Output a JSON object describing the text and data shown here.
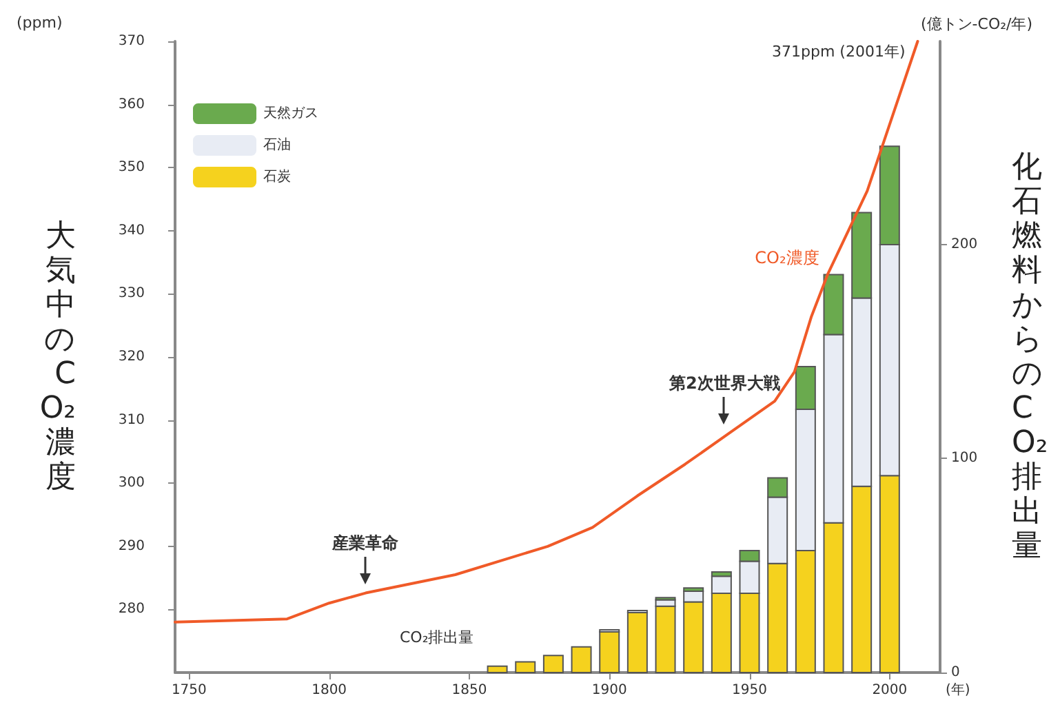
{
  "chart_data": {
    "type": "bar",
    "stacked": true,
    "ylabel": "大気中のCO₂濃度",
    "y2label": "化石燃料からのCO₂排出量",
    "xlabel": "(年)",
    "xlim": [
      1745,
      2018
    ],
    "xticks": [
      1750,
      1800,
      1850,
      1900,
      1950,
      2000
    ],
    "ylim": [
      270,
      370
    ],
    "yticks": [
      280,
      290,
      300,
      310,
      320,
      330,
      340,
      350,
      360,
      370
    ],
    "y2lim": [
      0,
      295
    ],
    "y2ticks": [
      0,
      100,
      200
    ],
    "x": [
      1860,
      1870,
      1880,
      1890,
      1900,
      1910,
      1920,
      1930,
      1940,
      1950,
      1960,
      1970,
      1980,
      1990,
      2000
    ],
    "series": [
      {
        "name": "石炭",
        "color": "#f5d21e",
        "axis": "y2",
        "values": [
          3,
          5,
          8,
          12,
          19,
          28,
          31,
          33,
          37,
          37,
          51,
          57,
          70,
          87,
          92
        ]
      },
      {
        "name": "石油",
        "color": "#e8ecf4",
        "axis": "y2",
        "values": [
          0,
          0,
          0,
          null,
          1,
          1,
          3,
          5,
          8,
          15,
          31,
          66,
          88,
          88,
          108
        ]
      },
      {
        "name": "天然ガス",
        "color": "#6aaa4e",
        "axis": "y2",
        "values": [
          0,
          0,
          0,
          0,
          0,
          0,
          1,
          1.5,
          2,
          5,
          9,
          20,
          28,
          40,
          46
        ]
      },
      {
        "name": "CO₂濃度",
        "type": "line",
        "color": "#f05a28",
        "axis": "y",
        "x": [
          1745,
          1785,
          1800,
          1813,
          1845,
          1878,
          1894,
          1910,
          1927,
          1943,
          1959,
          1966,
          1972,
          1978,
          1992,
          2010
        ],
        "values": [
          278,
          278.5,
          281,
          282.6,
          285.5,
          290,
          293,
          298,
          303,
          308,
          313,
          317.6,
          326.3,
          333.2,
          346.3,
          370
        ]
      }
    ],
    "annotations": [
      "(ppm)",
      "(億トン-CO₂/年)",
      {
        "text": "産業革命",
        "x": 1813,
        "y": 282.6
      },
      {
        "text": "第2次世界大戦",
        "x": 1941,
        "y": 308
      },
      "371ppm (2001年)",
      "CO₂排出量"
    ],
    "legend": "top left",
    "marker": "none",
    "grid": false
  }
}
